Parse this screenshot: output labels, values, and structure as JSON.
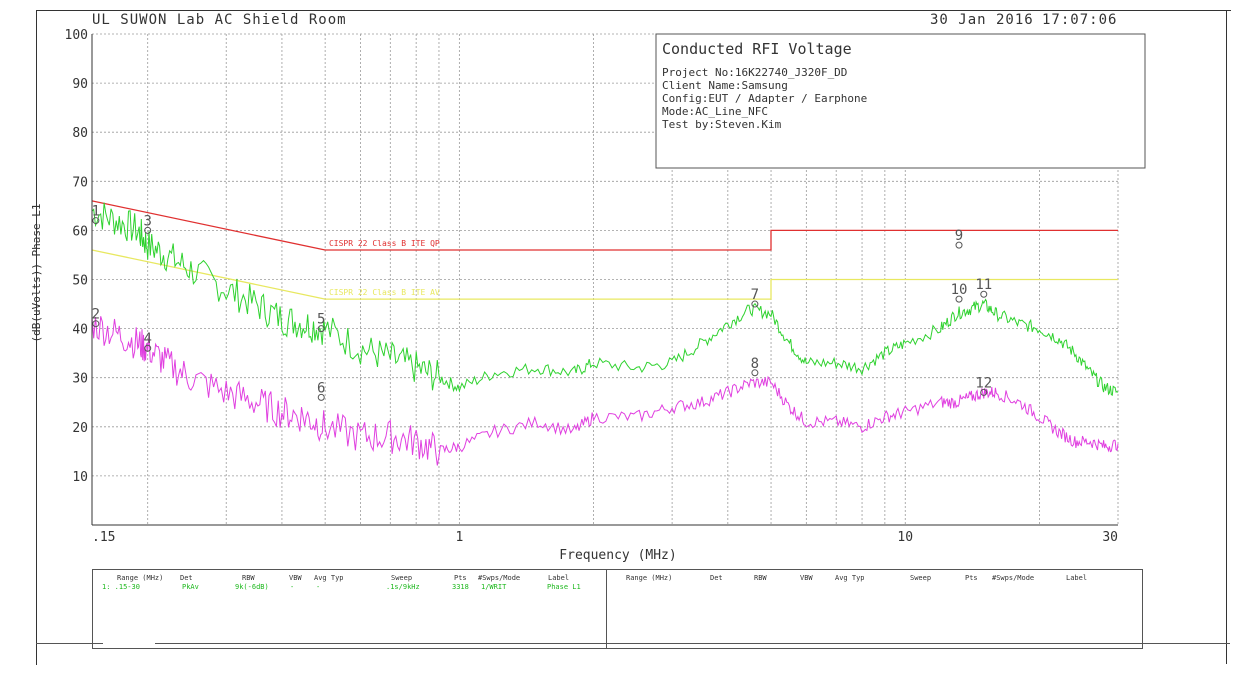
{
  "header": {
    "title": "UL SUWON Lab AC Shield Room",
    "date": "30 Jan 2016",
    "time": "17:07:06"
  },
  "info_box": {
    "title": "Conducted RFI Voltage",
    "lines": [
      "Project No:16K22740_J320F_DD",
      "Client Name:Samsung",
      "Config:EUT / Adapter / Earphone",
      "Mode:AC_Line_NFC",
      "Test by:Steven.Kim"
    ]
  },
  "colors": {
    "qp_limit": "#e03030",
    "avg_limit": "#e8e860",
    "qp_trace": "#2fd22f",
    "avg_trace": "#e040e0",
    "grid": "#9a9a9a"
  },
  "chart_data": {
    "type": "line",
    "ylabel": "(dB(uVolts)) Phase L1",
    "xlabel": "Frequency (MHz)",
    "x_scale": "log",
    "xlim": [
      0.15,
      30
    ],
    "ylim": [
      0,
      100
    ],
    "grid": true,
    "y_ticks": [
      "100",
      "90",
      "80",
      "70",
      "60",
      "50",
      "40",
      "30",
      "20",
      "10"
    ],
    "x_tick_labels": [
      {
        "x": 0.15,
        "label": ".15"
      },
      {
        "x": 1,
        "label": "1"
      },
      {
        "x": 10,
        "label": "10"
      },
      {
        "x": 30,
        "label": "30"
      }
    ],
    "limits": [
      {
        "name": "CISPR 22 Class B ITE QP",
        "label_text": "CISPR 22 Class B ITE QP",
        "x": [
          0.15,
          0.5,
          0.5,
          5,
          5,
          30
        ],
        "y": [
          66,
          56,
          56,
          56,
          60,
          60
        ]
      },
      {
        "name": "CISPR 22 Class B ITE AVG",
        "label_text": "CISPR 22 Class B ITE AV",
        "x": [
          0.15,
          0.5,
          0.5,
          5,
          5,
          30
        ],
        "y": [
          56,
          46,
          46,
          46,
          50,
          50
        ]
      }
    ],
    "series": [
      {
        "name": "QP trace",
        "x": [
          0.15,
          0.17,
          0.19,
          0.2,
          0.22,
          0.25,
          0.3,
          0.35,
          0.4,
          0.45,
          0.5,
          0.6,
          0.7,
          0.8,
          0.9,
          1.0,
          1.2,
          1.5,
          1.8,
          2.0,
          2.5,
          3.0,
          3.5,
          4.0,
          4.5,
          5.0,
          5.5,
          6.0,
          7.0,
          8.0,
          9.0,
          10,
          12,
          13,
          14,
          15,
          16,
          18,
          20,
          22,
          24,
          26,
          28,
          30
        ],
        "y": [
          64,
          62,
          60,
          57,
          55,
          52,
          48,
          45,
          42,
          41,
          40,
          36,
          34,
          32,
          30,
          28,
          31,
          32,
          31,
          33,
          32,
          33,
          37,
          41,
          44,
          43,
          37,
          33,
          33,
          32,
          35,
          37,
          40,
          43,
          44,
          45,
          43,
          41,
          40,
          38,
          35,
          31,
          28,
          27
        ]
      },
      {
        "name": "AVG trace",
        "x": [
          0.15,
          0.17,
          0.19,
          0.2,
          0.22,
          0.25,
          0.3,
          0.35,
          0.4,
          0.45,
          0.5,
          0.6,
          0.7,
          0.8,
          0.9,
          1.0,
          1.2,
          1.5,
          1.8,
          2.0,
          2.5,
          3.0,
          3.5,
          4.0,
          4.5,
          5.0,
          5.5,
          6.0,
          7.0,
          8.0,
          9.0,
          10,
          12,
          13,
          14,
          15,
          16,
          18,
          20,
          22,
          24,
          26,
          28,
          30
        ],
        "y": [
          41,
          39,
          37,
          36,
          33,
          30,
          27,
          25,
          23,
          22,
          20,
          18,
          18,
          17,
          15,
          16,
          19,
          21,
          19,
          22,
          22,
          24,
          25,
          27,
          29,
          29,
          24,
          21,
          21,
          20,
          22,
          23,
          25,
          25,
          26,
          27,
          27,
          25,
          22,
          19,
          17,
          17,
          16,
          16.5
        ]
      }
    ],
    "markers": [
      {
        "label": "1",
        "x": 0.153,
        "y": 62
      },
      {
        "label": "2",
        "x": 0.153,
        "y": 41
      },
      {
        "label": "3",
        "x": 0.2,
        "y": 60
      },
      {
        "label": "4",
        "x": 0.2,
        "y": 36
      },
      {
        "label": "5",
        "x": 0.49,
        "y": 40
      },
      {
        "label": "6",
        "x": 0.49,
        "y": 26
      },
      {
        "label": "7",
        "x": 4.6,
        "y": 45
      },
      {
        "label": "8",
        "x": 4.6,
        "y": 31
      },
      {
        "label": "9",
        "x": 13.2,
        "y": 57
      },
      {
        "label": "10",
        "x": 13.2,
        "y": 46
      },
      {
        "label": "11",
        "x": 15.0,
        "y": 47
      },
      {
        "label": "12",
        "x": 15.0,
        "y": 27
      }
    ]
  },
  "settings_table": {
    "headers_left": [
      "Range (MHz)",
      "Det",
      "RBW",
      "VBW",
      "Avg Typ",
      "Sweep",
      "Pts",
      "#Swps/Mode",
      "Label"
    ],
    "row_left": [
      "1: .15-30",
      "PkAv",
      "9k(-6dB)",
      "-",
      "-",
      ".1s/9kHz",
      "3318",
      "1/WRIT",
      "Phase L1"
    ],
    "headers_right": [
      "Range (MHz)",
      "Det",
      "RBW",
      "VBW",
      "Avg Typ",
      "Sweep",
      "Pts",
      "#Swps/Mode",
      "Label"
    ]
  }
}
